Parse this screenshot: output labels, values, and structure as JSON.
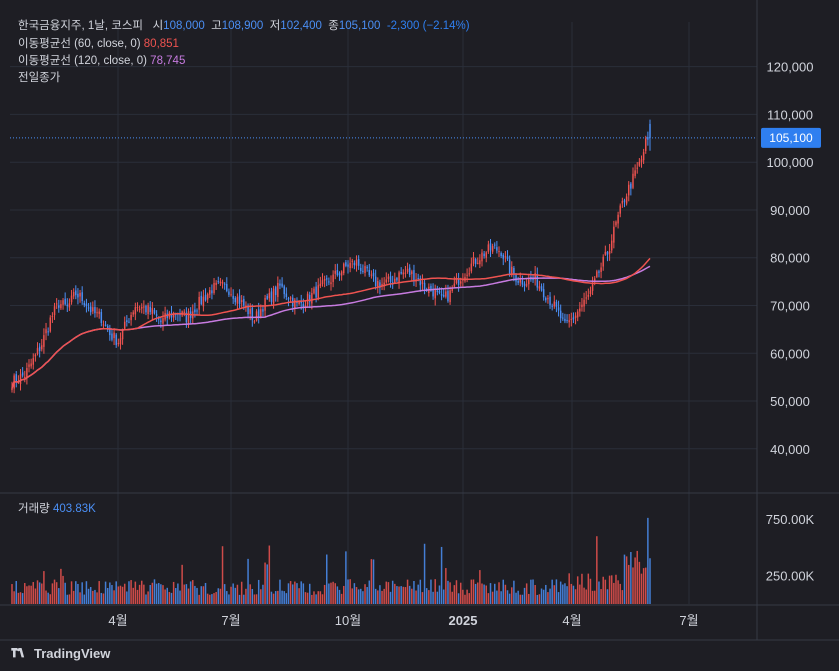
{
  "legend": {
    "symbol": "한국금융지주, 1날, 코스피",
    "open_label": "시",
    "open": "108,000",
    "high_label": "고",
    "high": "108,900",
    "low_label": "저",
    "low": "102,400",
    "close_label": "종",
    "close": "105,100",
    "change": "-2,300 (−2.14%)",
    "ma60_label": "이동평균선 (60, close, 0)",
    "ma60_value": "80,851",
    "ma120_label": "이동평균선 (120, close, 0)",
    "ma120_value": "78,745",
    "prev_close_label": "전일종가",
    "volume_label": "거래량",
    "volume_value": "403.83K"
  },
  "price_tag": "105,100",
  "footer": {
    "brand": "TradingView"
  },
  "colors": {
    "up": "#ef5350",
    "down": "#4b8ff5",
    "ma60": "#ef5350",
    "ma120": "#c77be0",
    "price_line": "#4b8ff5",
    "background": "#1e1e24"
  },
  "chart_data": {
    "type": "candlestick",
    "x_ticks": [
      "4월",
      "7월",
      "10월",
      "2025",
      "4월",
      "7월"
    ],
    "y_ticks": [
      "120,000",
      "110,000",
      "100,000",
      "90,000",
      "80,000",
      "70,000",
      "60,000",
      "50,000",
      "40,000"
    ],
    "ylim": [
      32000,
      126000
    ],
    "volume_ticks": [
      "750.00K",
      "250.00K"
    ],
    "volume_ylim": [
      0,
      900000
    ],
    "grid": true,
    "last_close": 105100,
    "series": [
      {
        "name": "이동평균선 (60, close, 0)",
        "last": 80851
      },
      {
        "name": "이동평균선 (120, close, 0)",
        "last": 78745
      }
    ],
    "close_anchors": [
      [
        0,
        54000
      ],
      [
        6,
        55500
      ],
      [
        10,
        58500
      ],
      [
        14,
        62000
      ],
      [
        18,
        67000
      ],
      [
        22,
        70500
      ],
      [
        26,
        69500
      ],
      [
        30,
        72500
      ],
      [
        34,
        71000
      ],
      [
        38,
        68500
      ],
      [
        42,
        67500
      ],
      [
        46,
        64000
      ],
      [
        50,
        62500
      ],
      [
        54,
        66500
      ],
      [
        58,
        70000
      ],
      [
        62,
        69500
      ],
      [
        66,
        68500
      ],
      [
        70,
        66500
      ],
      [
        74,
        68000
      ],
      [
        78,
        68500
      ],
      [
        82,
        67500
      ],
      [
        86,
        69500
      ],
      [
        90,
        71500
      ],
      [
        94,
        73500
      ],
      [
        98,
        74000
      ],
      [
        102,
        73500
      ],
      [
        106,
        71500
      ],
      [
        110,
        69500
      ],
      [
        114,
        67000
      ],
      [
        118,
        70000
      ],
      [
        122,
        72000
      ],
      [
        126,
        74000
      ],
      [
        130,
        72000
      ],
      [
        134,
        70000
      ],
      [
        138,
        71000
      ],
      [
        142,
        72500
      ],
      [
        146,
        74000
      ],
      [
        150,
        75500
      ],
      [
        154,
        77000
      ],
      [
        158,
        78500
      ],
      [
        162,
        79000
      ],
      [
        166,
        77000
      ],
      [
        170,
        75000
      ],
      [
        174,
        74500
      ],
      [
        178,
        75000
      ],
      [
        182,
        76500
      ],
      [
        186,
        77000
      ],
      [
        190,
        76000
      ],
      [
        194,
        74000
      ],
      [
        198,
        73000
      ],
      [
        202,
        71000
      ],
      [
        206,
        72500
      ],
      [
        210,
        75500
      ],
      [
        214,
        77500
      ],
      [
        218,
        79500
      ],
      [
        222,
        81000
      ],
      [
        226,
        82000
      ],
      [
        230,
        81500
      ],
      [
        234,
        77500
      ],
      [
        238,
        75500
      ],
      [
        242,
        75000
      ],
      [
        246,
        75500
      ],
      [
        250,
        73000
      ],
      [
        254,
        70500
      ],
      [
        258,
        67500
      ],
      [
        260,
        65500
      ],
      [
        264,
        67500
      ],
      [
        268,
        70000
      ],
      [
        272,
        72500
      ],
      [
        276,
        77000
      ],
      [
        280,
        81000
      ],
      [
        284,
        87000
      ],
      [
        288,
        92500
      ],
      [
        292,
        96500
      ],
      [
        296,
        100500
      ],
      [
        298,
        104000
      ],
      [
        300,
        105100
      ]
    ]
  }
}
